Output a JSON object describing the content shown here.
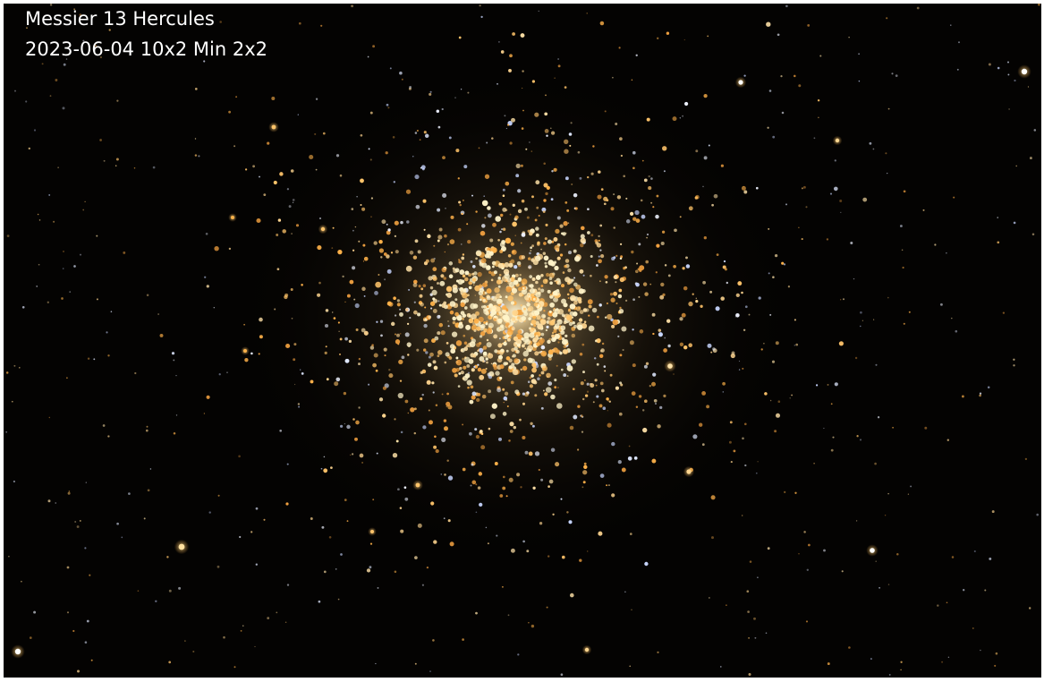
{
  "caption": {
    "title": "Messier 13 Hercules",
    "subtitle": "2023-06-04 10x2 Min 2x2"
  },
  "colors": {
    "frame": "#ffffff",
    "sky": "#040302",
    "star_warm": "#ffb24a",
    "star_cool": "#dfe8ff",
    "core_glow": "#fff3c8",
    "caption_text": "#ffffff"
  }
}
